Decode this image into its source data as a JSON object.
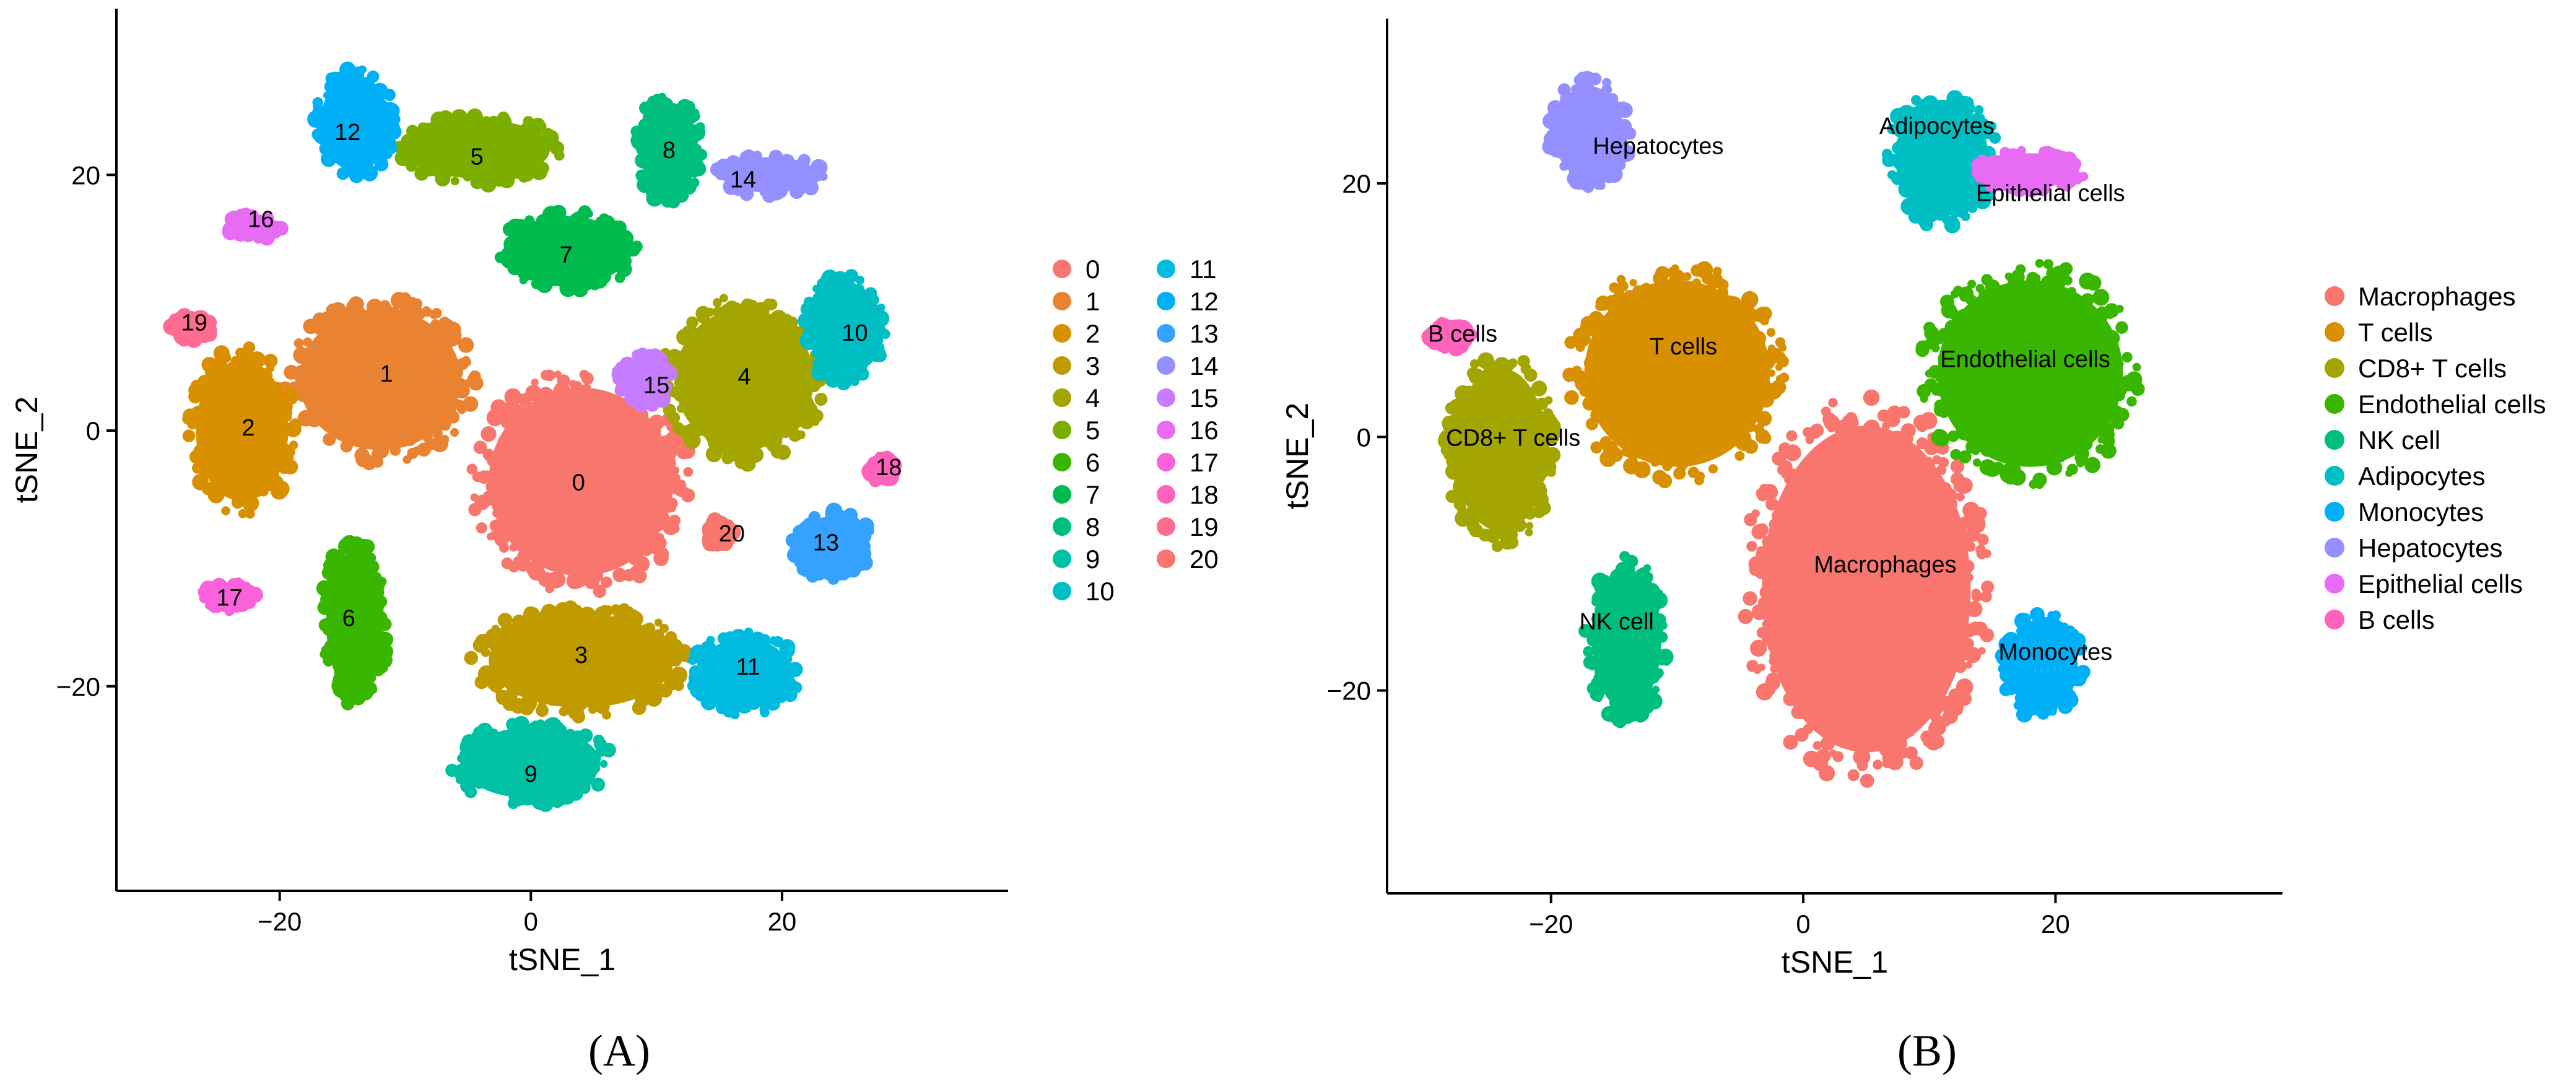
{
  "chart_data": [
    {
      "type": "scatter",
      "panel_label": "(A)",
      "xlabel": "tSNE_1",
      "ylabel": "tSNE_2",
      "xlim": [
        -33,
        38
      ],
      "ylim": [
        -36,
        33
      ],
      "xticks": [
        -20,
        0,
        20
      ],
      "yticks": [
        -20,
        0,
        20
      ],
      "xtick_labels": [
        "−20",
        "0",
        "20"
      ],
      "ytick_labels": [
        "−20",
        "0",
        "20"
      ],
      "grid": false,
      "legend_position": "right",
      "legend_columns": 2,
      "series": [
        {
          "name": "0",
          "color": "#F8766D",
          "centroid": [
            4,
            -4
          ],
          "spread": [
            8,
            8
          ]
        },
        {
          "name": "1",
          "color": "#EA8331",
          "centroid": [
            -12,
            4
          ],
          "spread": [
            7,
            6
          ]
        },
        {
          "name": "2",
          "color": "#D89000",
          "centroid": [
            -23,
            0
          ],
          "spread": [
            4,
            6
          ]
        },
        {
          "name": "3",
          "color": "#C09B00",
          "centroid": [
            4,
            -18
          ],
          "spread": [
            8,
            4
          ]
        },
        {
          "name": "4",
          "color": "#A3A500",
          "centroid": [
            17,
            4
          ],
          "spread": [
            6,
            6
          ]
        },
        {
          "name": "5",
          "color": "#7CAE00",
          "centroid": [
            -4,
            22
          ],
          "spread": [
            6,
            2.5
          ]
        },
        {
          "name": "6",
          "color": "#39B600",
          "centroid": [
            -14,
            -15
          ],
          "spread": [
            2.5,
            6
          ]
        },
        {
          "name": "7",
          "color": "#00BB4E",
          "centroid": [
            3,
            14
          ],
          "spread": [
            5,
            3
          ]
        },
        {
          "name": "8",
          "color": "#00BF7D",
          "centroid": [
            11,
            22
          ],
          "spread": [
            2.5,
            4
          ]
        },
        {
          "name": "9",
          "color": "#00C1A3",
          "centroid": [
            0,
            -26
          ],
          "spread": [
            6,
            3
          ]
        },
        {
          "name": "10",
          "color": "#00BFC4",
          "centroid": [
            25,
            8
          ],
          "spread": [
            3,
            4
          ]
        },
        {
          "name": "11",
          "color": "#00BAE0",
          "centroid": [
            17,
            -19
          ],
          "spread": [
            4,
            3
          ]
        },
        {
          "name": "12",
          "color": "#00B0F6",
          "centroid": [
            -14,
            24
          ],
          "spread": [
            3,
            4
          ]
        },
        {
          "name": "13",
          "color": "#35A2FF",
          "centroid": [
            24,
            -9
          ],
          "spread": [
            3,
            2.5
          ]
        },
        {
          "name": "14",
          "color": "#9590FF",
          "centroid": [
            19,
            20
          ],
          "spread": [
            4,
            1.5
          ]
        },
        {
          "name": "15",
          "color": "#C77CFF",
          "centroid": [
            9,
            4
          ],
          "spread": [
            2,
            2
          ]
        },
        {
          "name": "16",
          "color": "#E76BF3",
          "centroid": [
            -22,
            16
          ],
          "spread": [
            2,
            1
          ]
        },
        {
          "name": "17",
          "color": "#FA62DB",
          "centroid": [
            -24,
            -13
          ],
          "spread": [
            2,
            1
          ]
        },
        {
          "name": "18",
          "color": "#FF62BC",
          "centroid": [
            28,
            -3
          ],
          "spread": [
            1,
            1
          ]
        },
        {
          "name": "19",
          "color": "#FF6C91",
          "centroid": [
            -27,
            8
          ],
          "spread": [
            1.5,
            1
          ]
        },
        {
          "name": "20",
          "color": "#F8766D",
          "centroid": [
            15,
            -8
          ],
          "spread": [
            1,
            1
          ]
        }
      ],
      "annotations": [
        {
          "text": "0",
          "x": 3.8,
          "y": -4
        },
        {
          "text": "1",
          "x": -11.5,
          "y": 4.5
        },
        {
          "text": "2",
          "x": -22.5,
          "y": 0.3
        },
        {
          "text": "3",
          "x": 4,
          "y": -17.5
        },
        {
          "text": "4",
          "x": 17,
          "y": 4.3
        },
        {
          "text": "5",
          "x": -4.3,
          "y": 21.5
        },
        {
          "text": "6",
          "x": -14.5,
          "y": -14.6
        },
        {
          "text": "7",
          "x": 2.8,
          "y": 13.8
        },
        {
          "text": "8",
          "x": 11,
          "y": 22
        },
        {
          "text": "9",
          "x": 0,
          "y": -26.8
        },
        {
          "text": "10",
          "x": 25.8,
          "y": 7.7
        },
        {
          "text": "11",
          "x": 17.3,
          "y": -18.4
        },
        {
          "text": "12",
          "x": -14.6,
          "y": 23.4
        },
        {
          "text": "13",
          "x": 23.5,
          "y": -8.7
        },
        {
          "text": "14",
          "x": 16.9,
          "y": 19.7
        },
        {
          "text": "15",
          "x": 10,
          "y": 3.6
        },
        {
          "text": "16",
          "x": -21.5,
          "y": 16.6
        },
        {
          "text": "17",
          "x": -24,
          "y": -13
        },
        {
          "text": "18",
          "x": 28.5,
          "y": -2.8
        },
        {
          "text": "19",
          "x": -26.8,
          "y": 8.5
        },
        {
          "text": "20",
          "x": 16,
          "y": -8
        }
      ]
    },
    {
      "type": "scatter",
      "panel_label": "(B)",
      "xlabel": "tSNE_1",
      "ylabel": "tSNE_2",
      "xlim": [
        -33,
        38
      ],
      "ylim": [
        -36,
        33
      ],
      "xticks": [
        -20,
        0,
        20
      ],
      "yticks": [
        -20,
        0,
        20
      ],
      "xtick_labels": [
        "−20",
        "0",
        "20"
      ],
      "ytick_labels": [
        "−20",
        "0",
        "20"
      ],
      "grid": false,
      "legend_position": "right",
      "legend_columns": 1,
      "series": [
        {
          "name": "Macrophages",
          "color": "#F8766D",
          "centroid": [
            5,
            -12
          ],
          "spread": [
            9,
            14
          ]
        },
        {
          "name": "T cells",
          "color": "#D89000",
          "centroid": [
            -10,
            5
          ],
          "spread": [
            8,
            8
          ]
        },
        {
          "name": "CD8+ T cells",
          "color": "#A3A500",
          "centroid": [
            -24,
            -1
          ],
          "spread": [
            4,
            7
          ]
        },
        {
          "name": "Endothelial cells",
          "color": "#39B600",
          "centroid": [
            18,
            5
          ],
          "spread": [
            8,
            8
          ]
        },
        {
          "name": "NK cell",
          "color": "#00BF7D",
          "centroid": [
            -14,
            -16
          ],
          "spread": [
            3,
            6
          ]
        },
        {
          "name": "Adipocytes",
          "color": "#00BFC4",
          "centroid": [
            11,
            22
          ],
          "spread": [
            4,
            5
          ]
        },
        {
          "name": "Monocytes",
          "color": "#00B0F6",
          "centroid": [
            19,
            -18
          ],
          "spread": [
            3,
            4
          ]
        },
        {
          "name": "Hepatocytes",
          "color": "#9590FF",
          "centroid": [
            -17,
            24
          ],
          "spread": [
            3,
            4
          ]
        },
        {
          "name": "Epithelial cells",
          "color": "#E76BF3",
          "centroid": [
            18,
            21
          ],
          "spread": [
            4,
            1.5
          ]
        },
        {
          "name": "B cells",
          "color": "#FF62BC",
          "centroid": [
            -28,
            8
          ],
          "spread": [
            1.5,
            1
          ]
        }
      ],
      "annotations": [
        {
          "text": "Hepatocytes",
          "x": -11.5,
          "y": 23
        },
        {
          "text": "Adipocytes",
          "x": 10.6,
          "y": 24.6
        },
        {
          "text": "Epithelial cells",
          "x": 19.6,
          "y": 19.3
        },
        {
          "text": "B cells",
          "x": -27,
          "y": 8.2
        },
        {
          "text": "T cells",
          "x": -9.5,
          "y": 7.2
        },
        {
          "text": "Endothelial cells",
          "x": 17.6,
          "y": 6.2
        },
        {
          "text": "CD8+ T cells",
          "x": -23,
          "y": 0
        },
        {
          "text": "Macrophages",
          "x": 6.5,
          "y": -10
        },
        {
          "text": "NK cell",
          "x": -14.8,
          "y": -14.5
        },
        {
          "text": "Monocytes",
          "x": 20,
          "y": -16.9
        }
      ]
    }
  ]
}
